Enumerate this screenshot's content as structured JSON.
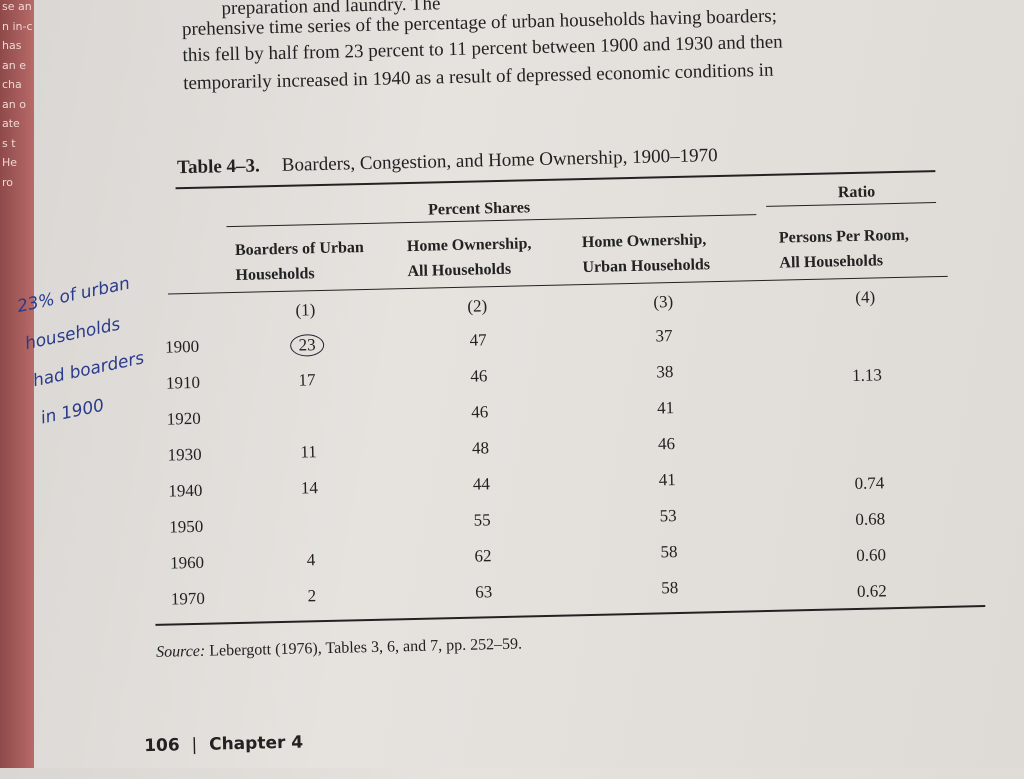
{
  "left_page_fragments": [
    "se an",
    "n in-c",
    "has",
    "an e",
    "cha",
    "an o",
    "ate",
    "s t",
    "He",
    "ro"
  ],
  "paragraph": [
    "preparation and laundry. The",
    "prehensive time series of the percentage of urban households having boarders;",
    "this fell by half from 23 percent to 11 percent between 1900 and 1930 and then",
    "temporarily increased in 1940 as a result of depressed economic conditions in"
  ],
  "table": {
    "label": "Table 4–3.",
    "title": "Boarders, Congestion, and Home Ownership, 1900–1970",
    "groups": [
      "Percent Shares",
      "Ratio"
    ],
    "headers": [
      [
        "Boarders of Urban",
        "Households"
      ],
      [
        "Home Ownership,",
        "All Households"
      ],
      [
        "Home Ownership,",
        "Urban Households"
      ],
      [
        "Persons Per Room,",
        "All Households"
      ]
    ],
    "column_numbers": [
      "(1)",
      "(2)",
      "(3)",
      "(4)"
    ],
    "rows": [
      [
        "1900",
        "23",
        "47",
        "37",
        null
      ],
      [
        "1910",
        "17",
        "46",
        "38",
        "1.13"
      ],
      [
        "1920",
        null,
        "46",
        "41",
        null
      ],
      [
        "1930",
        "11",
        "48",
        "46",
        null
      ],
      [
        "1940",
        "14",
        "44",
        "41",
        "0.74"
      ],
      [
        "1950",
        null,
        "55",
        "53",
        "0.68"
      ],
      [
        "1960",
        "4",
        "62",
        "58",
        "0.60"
      ],
      [
        "1970",
        "2",
        "63",
        "58",
        "0.62"
      ]
    ],
    "source_label": "Source:",
    "source": "Lebergott (1976), Tables 3, 6, and 7, pp. 252–59."
  },
  "handwritten_note": [
    "23% of urban",
    "households",
    "had boarders",
    "in 1900"
  ],
  "footer": {
    "page_number": "106",
    "separator": "|",
    "chapter": "Chapter 4"
  }
}
